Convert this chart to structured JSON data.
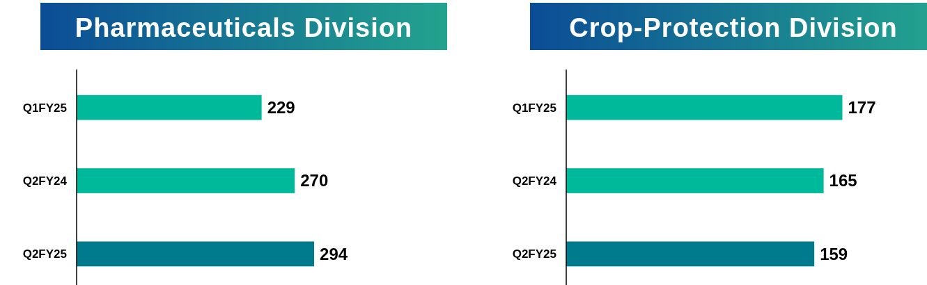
{
  "chart_data": [
    {
      "type": "bar",
      "orientation": "horizontal",
      "title": "Pharmaceuticals Division",
      "categories": [
        "Q1FY25",
        "Q2FY24",
        "Q2FY25"
      ],
      "values": [
        229,
        270,
        294
      ],
      "colors": [
        "#00b89a",
        "#00b89a",
        "#007b8e"
      ],
      "data_labels": true
    },
    {
      "type": "bar",
      "orientation": "horizontal",
      "title": "Crop-Protection Division",
      "categories": [
        "Q1FY25",
        "Q2FY24",
        "Q2FY25"
      ],
      "values": [
        177,
        165,
        159
      ],
      "colors": [
        "#00b89a",
        "#00b89a",
        "#007b8e"
      ],
      "data_labels": true
    }
  ]
}
